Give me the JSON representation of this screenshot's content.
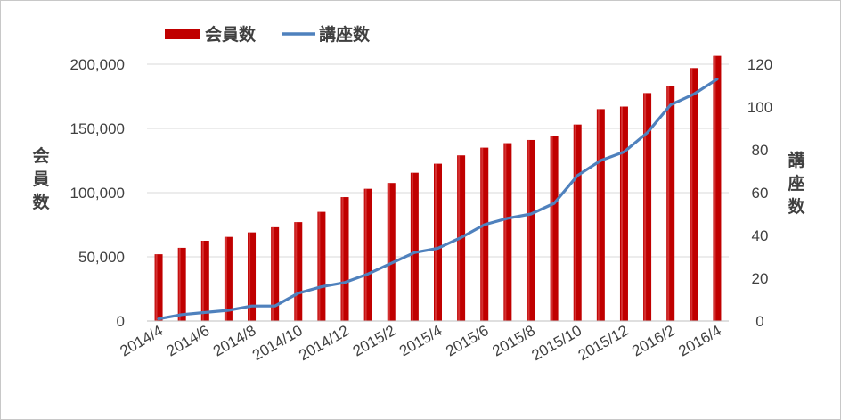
{
  "chart_data": {
    "type": "bar+line",
    "categories": [
      "2014/4",
      "2014/5",
      "2014/6",
      "2014/7",
      "2014/8",
      "2014/9",
      "2014/10",
      "2014/11",
      "2014/12",
      "2015/1",
      "2015/2",
      "2015/3",
      "2015/4",
      "2015/5",
      "2015/6",
      "2015/7",
      "2015/8",
      "2015/9",
      "2015/10",
      "2015/11",
      "2015/12",
      "2016/1",
      "2016/2",
      "2016/3",
      "2016/4"
    ],
    "x_tick_labels": [
      "2014/4",
      "2014/6",
      "2014/8",
      "2014/10",
      "2014/12",
      "2015/2",
      "2015/4",
      "2015/6",
      "2015/8",
      "2015/10",
      "2015/12",
      "2016/2",
      "2016/4"
    ],
    "series": [
      {
        "name": "会員数",
        "type": "bar",
        "axis": "left",
        "color": "#c00000",
        "values": [
          52000,
          57000,
          62500,
          65500,
          69000,
          73000,
          77000,
          85000,
          96500,
          103000,
          107500,
          115500,
          122500,
          129000,
          135000,
          138500,
          141000,
          144000,
          153000,
          165000,
          167000,
          177500,
          183000,
          197000,
          206500
        ]
      },
      {
        "name": "講座数",
        "type": "line",
        "axis": "right",
        "color": "#4f81bd",
        "values": [
          1,
          3,
          4,
          5,
          7,
          7,
          13,
          16,
          18,
          22,
          27,
          32,
          34,
          39,
          45,
          48,
          50,
          55,
          68,
          75,
          79,
          88,
          101,
          106,
          113
        ]
      }
    ],
    "y_left": {
      "label": "会員数",
      "min": 0,
      "max": 200000,
      "ticks": [
        "0",
        "50,000",
        "100,000",
        "150,000",
        "200,000"
      ]
    },
    "y_right": {
      "label": "講座数",
      "min": 0,
      "max": 120,
      "ticks": [
        "0",
        "20",
        "40",
        "60",
        "80",
        "100",
        "120"
      ]
    },
    "grid": true,
    "legend": "top-left"
  }
}
